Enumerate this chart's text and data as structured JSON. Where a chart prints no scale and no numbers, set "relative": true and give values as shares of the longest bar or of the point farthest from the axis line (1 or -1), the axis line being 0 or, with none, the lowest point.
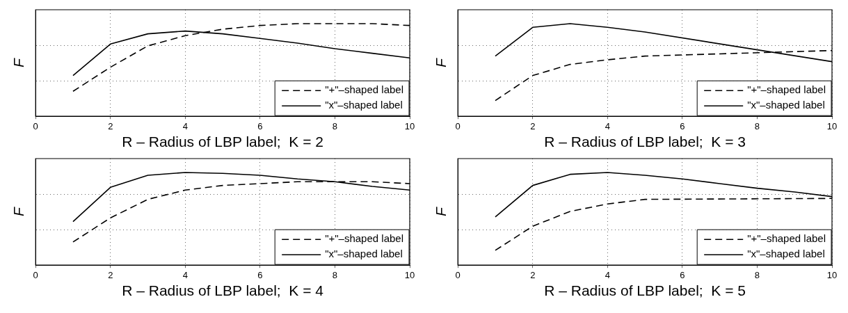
{
  "chart_data": [
    {
      "type": "line",
      "relative": true,
      "xlabel": "R – Radius of LBP label;  K = 2",
      "ylabel": "F",
      "x": [
        1,
        2,
        3,
        4,
        5,
        6,
        7,
        8,
        9,
        10
      ],
      "xlim": [
        0,
        10
      ],
      "xticks": [
        0,
        2,
        4,
        6,
        8,
        10
      ],
      "tick_labels": "x",
      "grid": true,
      "legend": "bottom right",
      "marker": "none",
      "series": [
        {
          "name": "\"+\"–shaped label",
          "color": "#000000",
          "line_style": "dashed",
          "values": [
            0.27,
            0.53,
            0.76,
            0.87,
            0.94,
            0.98,
            1.0,
            1.0,
            1.0,
            0.98
          ]
        },
        {
          "name": "\"x\"–shaped label",
          "color": "#000000",
          "line_style": "solid",
          "values": [
            0.44,
            0.78,
            0.89,
            0.92,
            0.89,
            0.84,
            0.79,
            0.73,
            0.68,
            0.63
          ]
        }
      ]
    },
    {
      "type": "line",
      "relative": true,
      "xlabel": "R – Radius of LBP label;  K = 3",
      "ylabel": "F",
      "x": [
        1,
        2,
        3,
        4,
        5,
        6,
        7,
        8,
        9,
        10
      ],
      "xlim": [
        0,
        10
      ],
      "xticks": [
        0,
        2,
        4,
        6,
        8,
        10
      ],
      "tick_labels": "x",
      "grid": true,
      "legend": "bottom right",
      "marker": "none",
      "series": [
        {
          "name": "\"+\"–shaped label",
          "color": "#000000",
          "line_style": "dashed",
          "values": [
            0.17,
            0.44,
            0.56,
            0.61,
            0.65,
            null,
            null,
            null,
            null,
            0.71
          ]
        },
        {
          "name": "\"x\"–shaped label",
          "color": "#000000",
          "line_style": "solid",
          "values": [
            0.65,
            0.96,
            1.0,
            0.96,
            0.91,
            null,
            null,
            null,
            null,
            0.59
          ]
        }
      ]
    },
    {
      "type": "line",
      "relative": true,
      "xlabel": "R – Radius of LBP label;  K = 4",
      "ylabel": "F",
      "x": [
        1,
        2,
        3,
        4,
        5,
        6,
        7,
        8,
        9,
        10
      ],
      "xlim": [
        0,
        10
      ],
      "xticks": [
        0,
        2,
        4,
        6,
        8,
        10
      ],
      "tick_labels": "x",
      "grid": true,
      "legend": "bottom right",
      "marker": "none",
      "series": [
        {
          "name": "\"+\"–shaped label",
          "color": "#000000",
          "line_style": "dashed",
          "values": [
            0.25,
            0.51,
            0.71,
            0.81,
            0.86,
            0.88,
            0.9,
            0.9,
            0.9,
            0.88
          ]
        },
        {
          "name": "\"x\"–shaped label",
          "color": "#000000",
          "line_style": "solid",
          "values": [
            0.47,
            0.84,
            0.97,
            1.0,
            0.99,
            0.97,
            0.93,
            0.9,
            0.85,
            0.81
          ]
        }
      ]
    },
    {
      "type": "line",
      "relative": true,
      "xlabel": "R – Radius of LBP label;  K = 5",
      "ylabel": "F",
      "x": [
        1,
        2,
        3,
        4,
        5,
        6,
        7,
        8,
        9,
        10
      ],
      "xlim": [
        0,
        10
      ],
      "xticks": [
        0,
        2,
        4,
        6,
        8,
        10
      ],
      "tick_labels": "x",
      "grid": true,
      "legend": "bottom right",
      "marker": "none",
      "series": [
        {
          "name": "\"+\"–shaped label",
          "color": "#000000",
          "line_style": "dashed",
          "values": [
            0.16,
            0.42,
            0.58,
            0.66,
            0.71,
            null,
            null,
            null,
            null,
            0.72
          ]
        },
        {
          "name": "\"x\"–shaped label",
          "color": "#000000",
          "line_style": "solid",
          "values": [
            0.52,
            0.86,
            0.98,
            1.0,
            0.97,
            0.93,
            0.88,
            0.83,
            0.79,
            0.74
          ]
        }
      ]
    }
  ]
}
